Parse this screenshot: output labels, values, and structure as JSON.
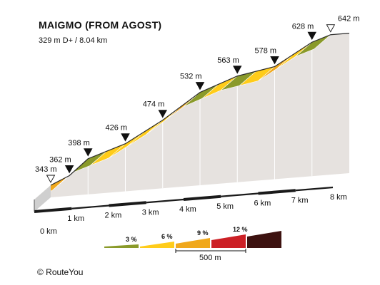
{
  "chart_data": {
    "type": "area",
    "title": "MAIGMO (FROM AGOST)",
    "subtitle": "329 m D+ / 8.04 km",
    "x_unit": "km",
    "y_unit": "m",
    "xlim": [
      0,
      8
    ],
    "x_ticks": [
      {
        "value": 0,
        "label": "0 km"
      },
      {
        "value": 1,
        "label": "1 km"
      },
      {
        "value": 2,
        "label": "2 km"
      },
      {
        "value": 3,
        "label": "3 km"
      },
      {
        "value": 4,
        "label": "4 km"
      },
      {
        "value": 5,
        "label": "5 km"
      },
      {
        "value": 6,
        "label": "6 km"
      },
      {
        "value": 7,
        "label": "7 km"
      },
      {
        "value": 8,
        "label": "8 km"
      }
    ],
    "points": [
      {
        "x": 0.0,
        "y": 343
      },
      {
        "x": 0.5,
        "y": 362
      },
      {
        "x": 1.0,
        "y": 398
      },
      {
        "x": 2.0,
        "y": 426
      },
      {
        "x": 3.0,
        "y": 474
      },
      {
        "x": 4.0,
        "y": 532
      },
      {
        "x": 5.0,
        "y": 563
      },
      {
        "x": 6.0,
        "y": 578
      },
      {
        "x": 7.0,
        "y": 628
      },
      {
        "x": 7.5,
        "y": 642
      },
      {
        "x": 8.0,
        "y": 642
      }
    ],
    "markers": [
      {
        "x": 0.0,
        "elevation": 343,
        "label": "343 m",
        "kind": "start"
      },
      {
        "x": 0.5,
        "elevation": 362,
        "label": "362 m",
        "kind": "point"
      },
      {
        "x": 1.0,
        "elevation": 398,
        "label": "398 m",
        "kind": "point"
      },
      {
        "x": 2.0,
        "elevation": 426,
        "label": "426 m",
        "kind": "point"
      },
      {
        "x": 3.0,
        "elevation": 474,
        "label": "474 m",
        "kind": "point"
      },
      {
        "x": 4.0,
        "elevation": 532,
        "label": "532 m",
        "kind": "point"
      },
      {
        "x": 5.0,
        "elevation": 563,
        "label": "563 m",
        "kind": "point"
      },
      {
        "x": 6.0,
        "elevation": 578,
        "label": "578 m",
        "kind": "point"
      },
      {
        "x": 7.0,
        "elevation": 628,
        "label": "628 m",
        "kind": "point"
      },
      {
        "x": 7.5,
        "elevation": 642,
        "label": "642 m",
        "kind": "end"
      }
    ],
    "segments": [
      {
        "from": 0.0,
        "to": 0.5,
        "gradient_class": "6-9"
      },
      {
        "from": 0.5,
        "to": 1.0,
        "gradient_class": "3-6"
      },
      {
        "from": 1.0,
        "to": 1.5,
        "gradient_class": "0-3"
      },
      {
        "from": 1.5,
        "to": 2.0,
        "gradient_class": "3-6"
      },
      {
        "from": 2.0,
        "to": 2.5,
        "gradient_class": "3-6"
      },
      {
        "from": 2.5,
        "to": 3.0,
        "gradient_class": "3-6"
      },
      {
        "from": 3.0,
        "to": 3.5,
        "gradient_class": "3-6"
      },
      {
        "from": 3.5,
        "to": 4.0,
        "gradient_class": "6-9"
      },
      {
        "from": 4.0,
        "to": 4.5,
        "gradient_class": "0-3"
      },
      {
        "from": 4.5,
        "to": 5.0,
        "gradient_class": "3-6"
      },
      {
        "from": 5.0,
        "to": 5.5,
        "gradient_class": "0-3"
      },
      {
        "from": 5.5,
        "to": 6.0,
        "gradient_class": "3-6"
      },
      {
        "from": 6.0,
        "to": 6.5,
        "gradient_class": "6-9"
      },
      {
        "from": 6.5,
        "to": 7.0,
        "gradient_class": "3-6"
      },
      {
        "from": 7.0,
        "to": 7.5,
        "gradient_class": "0-3"
      }
    ],
    "legend": {
      "items": [
        {
          "class": "0-3",
          "label": "3 %",
          "color": "#8a9a2a"
        },
        {
          "class": "3-6",
          "label": "6 %",
          "color": "#ffcc1a"
        },
        {
          "class": "6-9",
          "label": "9 %",
          "color": "#f0a81c"
        },
        {
          "class": "9-12",
          "label": "12 %",
          "color": "#cc2026"
        },
        {
          "class": "12+",
          "label": "",
          "color": "#3d1210"
        }
      ],
      "scale_label": "500 m"
    }
  },
  "colors": {
    "wall": "#e6e2df",
    "bottom_edge": "#1a1a1a",
    "left_face": "#cfcfcf",
    "grid_line": "#ffffff"
  },
  "footer": {
    "copyright": "©  RouteYou"
  }
}
